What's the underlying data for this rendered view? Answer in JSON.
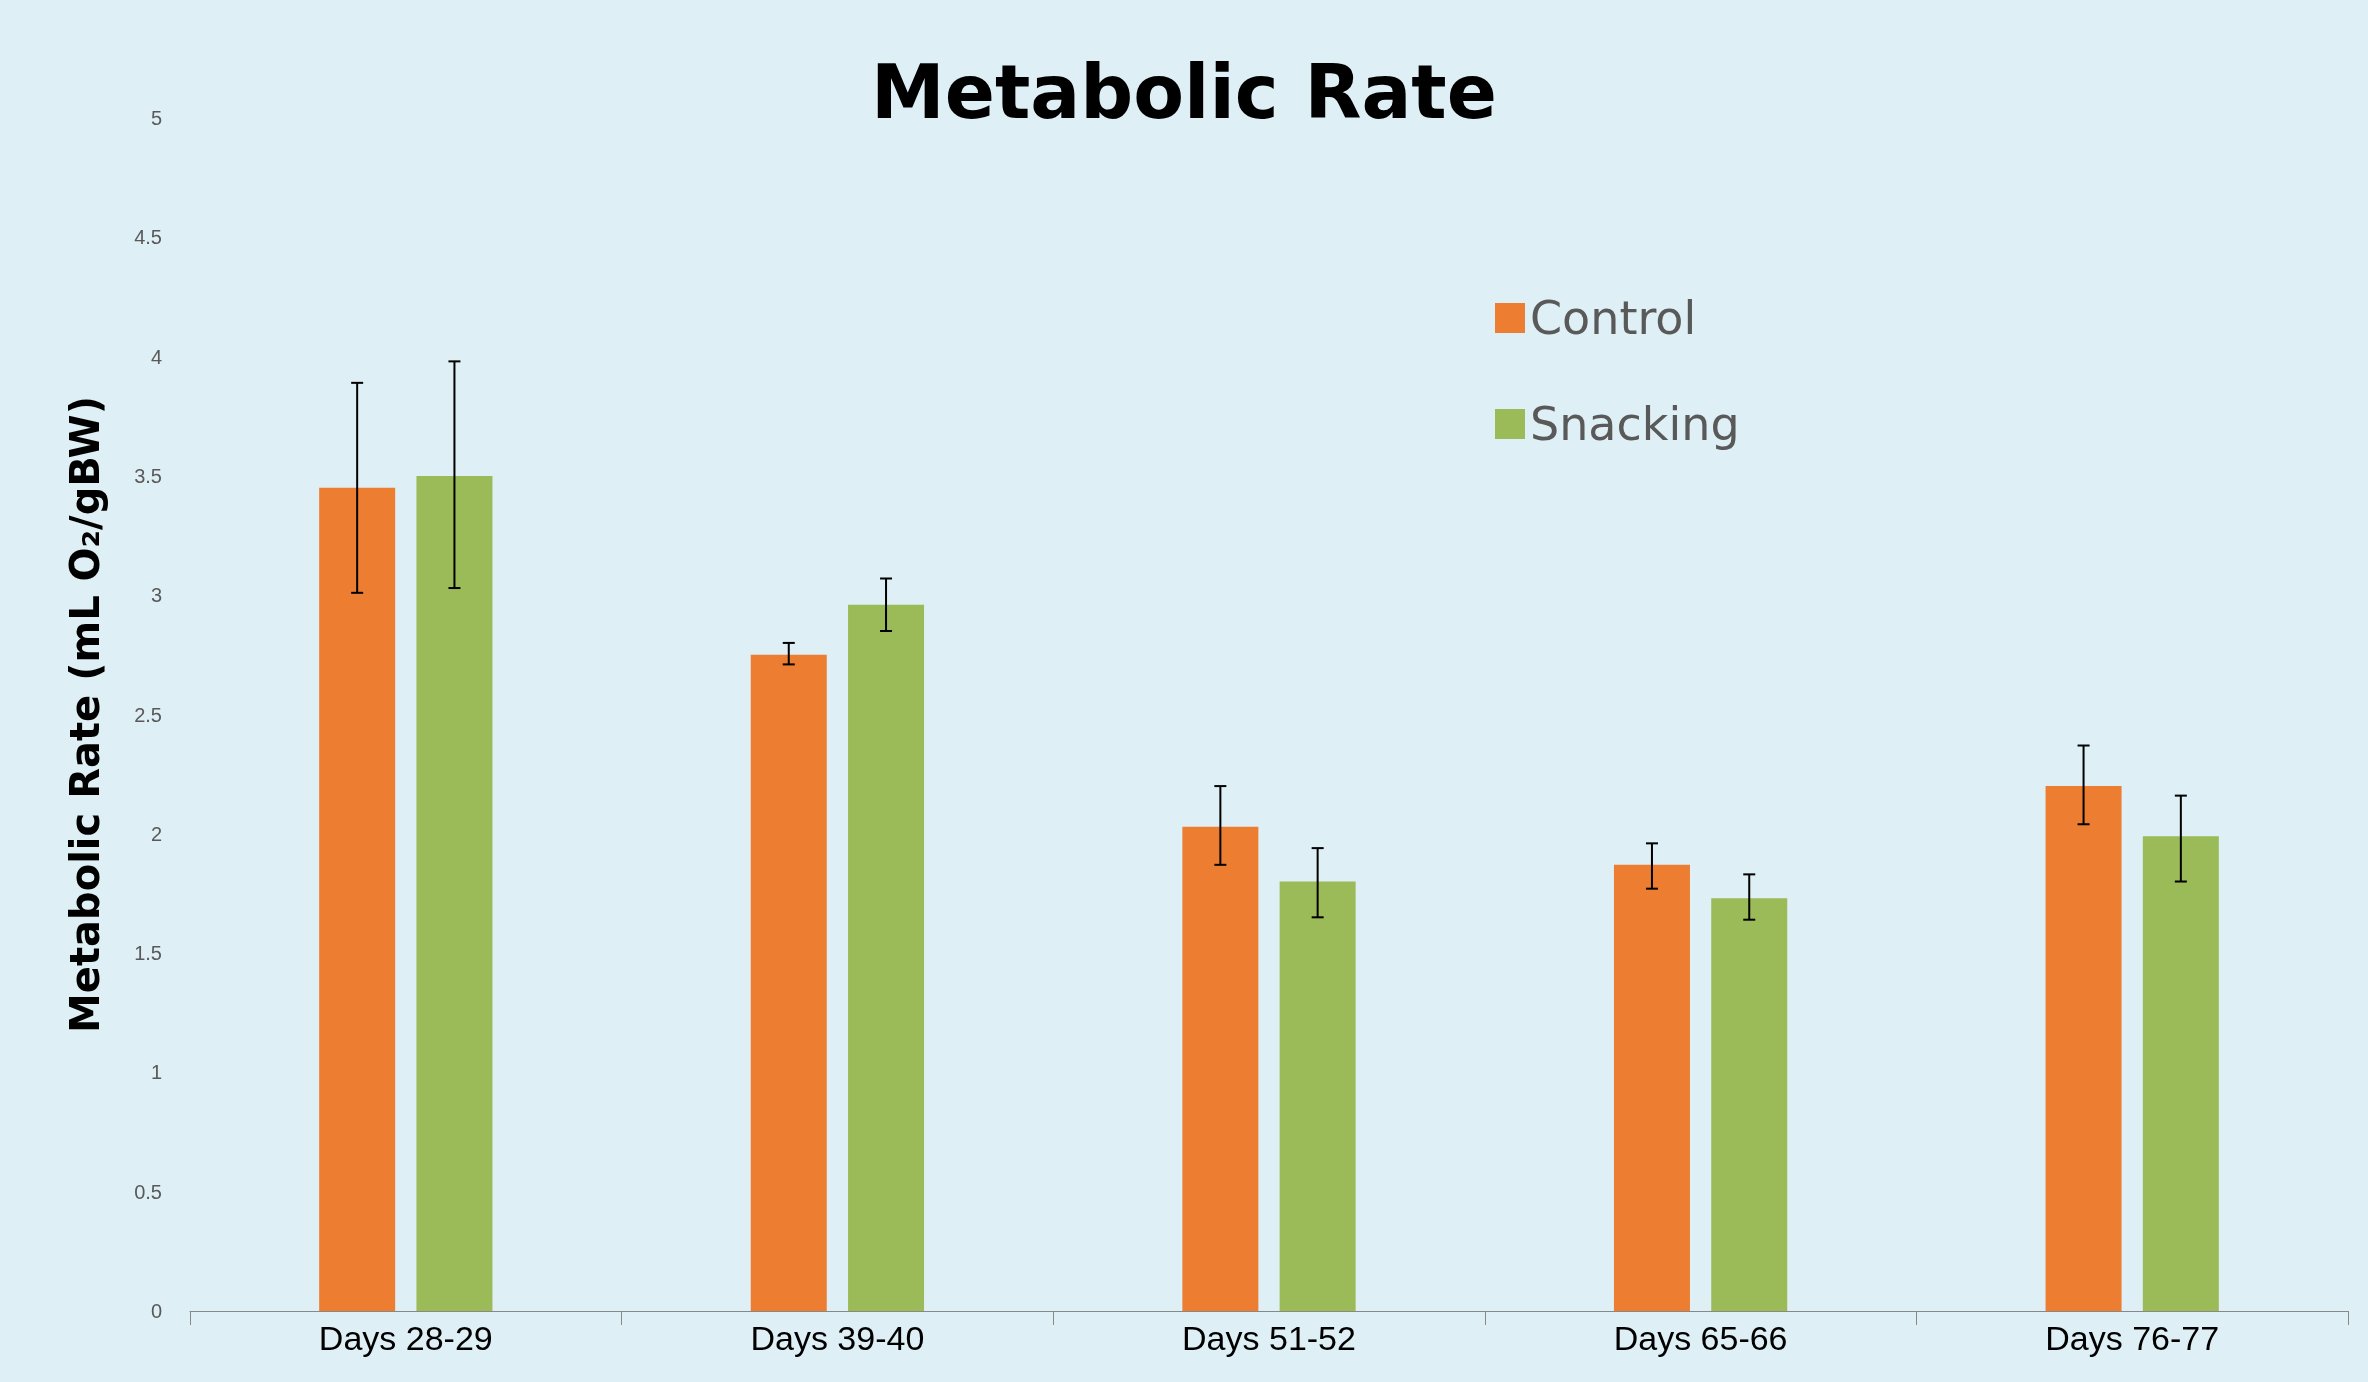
{
  "chart_data": {
    "type": "bar",
    "title": "Metabolic Rate",
    "ylabel": "Metabolic Rate (mL O₂/gBW)",
    "categories": [
      "Days 28-29",
      "Days 39-40",
      "Days 51-52",
      "Days 65-66",
      "Days 76-77"
    ],
    "series": [
      {
        "name": "Control",
        "color": "#ed7d31",
        "values": [
          3.45,
          2.75,
          2.03,
          1.87,
          2.2
        ],
        "errors": [
          [
            3.01,
            3.89
          ],
          [
            2.71,
            2.8
          ],
          [
            1.87,
            2.2
          ],
          [
            1.77,
            1.96
          ],
          [
            2.04,
            2.37
          ]
        ]
      },
      {
        "name": "Snacking",
        "color": "#9bbb59",
        "values": [
          3.5,
          2.96,
          1.8,
          1.73,
          1.99
        ],
        "errors": [
          [
            3.03,
            3.98
          ],
          [
            2.85,
            3.07
          ],
          [
            1.65,
            1.94
          ],
          [
            1.64,
            1.83
          ],
          [
            1.8,
            2.16
          ]
        ]
      }
    ],
    "ylim": [
      0,
      5
    ],
    "yticks": [
      0,
      0.5,
      1,
      1.5,
      2,
      2.5,
      3,
      3.5,
      4,
      4.5,
      5
    ],
    "grid": false,
    "legend": "top right"
  }
}
